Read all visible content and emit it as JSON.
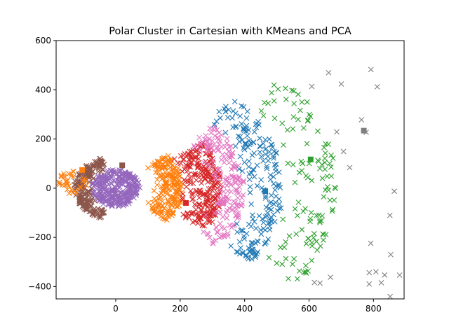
{
  "chart_data": {
    "type": "scatter",
    "title": "Polar Cluster in Cartesian with KMeans and PCA",
    "xlabel": "",
    "ylabel": "",
    "xlim": [
      -185,
      895
    ],
    "ylim": [
      -450,
      600
    ],
    "x_ticks": [
      0,
      200,
      400,
      600,
      800
    ],
    "y_ticks": [
      -400,
      -200,
      0,
      200,
      400,
      600
    ],
    "grid": false,
    "legend": "none",
    "marker": "x",
    "centroid_marker": "square",
    "series": [
      {
        "color": "#9467bd",
        "center": [
          0,
          0
        ],
        "radius": [
          0,
          75
        ],
        "angle": [
          0,
          360
        ],
        "count": 330,
        "centroid": [
          -10,
          -10
        ]
      },
      {
        "color": "#8c564b",
        "center": [
          0,
          0
        ],
        "radius": [
          75,
          130
        ],
        "angle": [
          110,
          250
        ],
        "count": 220,
        "centroid": [
          20,
          93
        ]
      },
      {
        "color": "#ff7f0e",
        "center": [
          -140,
          20
        ],
        "radius": [
          0,
          50
        ],
        "angle": [
          0,
          360
        ],
        "count": 40,
        "centroid": [
          -104,
          74
        ]
      },
      {
        "color": "#ff7f0e",
        "center": [
          0,
          0
        ],
        "radius": [
          110,
          210
        ],
        "angle": [
          -40,
          40
        ],
        "count": 200,
        "centroid": null
      },
      {
        "color": "#d62728",
        "center": [
          0,
          0
        ],
        "radius": [
          200,
          330
        ],
        "angle": [
          -30,
          35
        ],
        "count": 260,
        "centroid": [
          218,
          -60
        ]
      },
      {
        "color": "#e377c2",
        "center": [
          0,
          0
        ],
        "radius": [
          290,
          400
        ],
        "angle": [
          -37,
          40
        ],
        "count": 180,
        "centroid": [
          334,
          -60
        ]
      },
      {
        "color": "#1f77b4",
        "center": [
          0,
          0
        ],
        "radius": [
          390,
          520
        ],
        "angle": [
          -35,
          45
        ],
        "count": 200,
        "centroid": [
          464,
          -12
        ]
      },
      {
        "color": "#2ca02c",
        "center": [
          0,
          0
        ],
        "radius": [
          520,
          690
        ],
        "angle": [
          -35,
          42
        ],
        "count": 120,
        "centroid": [
          605,
          117
        ]
      },
      {
        "color": "#7f7f7f",
        "center": [
          0,
          0
        ],
        "radius": [
          660,
          960
        ],
        "angle": [
          -33,
          37
        ],
        "count": 32,
        "centroid": [
          770,
          234
        ]
      }
    ]
  }
}
